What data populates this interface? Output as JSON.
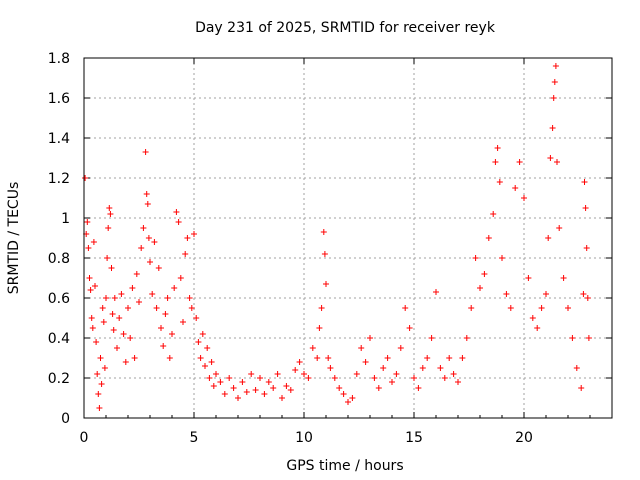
{
  "chart_data": {
    "type": "scatter",
    "title": "Day 231 of 2025, SRMTID for receiver reyk",
    "xlabel": "GPS time / hours",
    "ylabel": "SRMTID / TECUs",
    "xlim": [
      0,
      24
    ],
    "ylim": [
      0,
      1.8
    ],
    "xticks": [
      0,
      5,
      10,
      15,
      20
    ],
    "xtick_labels": [
      "0",
      "5",
      "10",
      "15",
      "20"
    ],
    "yticks": [
      0,
      0.2,
      0.4,
      0.6,
      0.8,
      1.0,
      1.2,
      1.4,
      1.6,
      1.8
    ],
    "ytick_labels": [
      "0",
      "0.2",
      "0.4",
      "0.6",
      "0.8",
      "1",
      "1.2",
      "1.4",
      "1.6",
      "1.8"
    ],
    "grid": true,
    "marker": "+",
    "series": [
      {
        "name": "SRMTID",
        "color": "#ff0000",
        "points": [
          [
            0.05,
            1.2
          ],
          [
            0.1,
            0.92
          ],
          [
            0.15,
            0.98
          ],
          [
            0.2,
            0.85
          ],
          [
            0.25,
            0.7
          ],
          [
            0.3,
            0.64
          ],
          [
            0.35,
            0.5
          ],
          [
            0.4,
            0.45
          ],
          [
            0.45,
            0.88
          ],
          [
            0.5,
            0.66
          ],
          [
            0.55,
            0.38
          ],
          [
            0.6,
            0.22
          ],
          [
            0.65,
            0.12
          ],
          [
            0.7,
            0.05
          ],
          [
            0.75,
            0.3
          ],
          [
            0.8,
            0.17
          ],
          [
            0.85,
            0.55
          ],
          [
            0.9,
            0.48
          ],
          [
            0.95,
            0.25
          ],
          [
            1.0,
            0.6
          ],
          [
            1.05,
            0.8
          ],
          [
            1.1,
            0.95
          ],
          [
            1.15,
            1.05
          ],
          [
            1.2,
            1.02
          ],
          [
            1.25,
            0.75
          ],
          [
            1.3,
            0.52
          ],
          [
            1.35,
            0.44
          ],
          [
            1.4,
            0.6
          ],
          [
            1.5,
            0.35
          ],
          [
            1.6,
            0.5
          ],
          [
            1.7,
            0.62
          ],
          [
            1.8,
            0.42
          ],
          [
            1.9,
            0.28
          ],
          [
            2.0,
            0.55
          ],
          [
            2.1,
            0.4
          ],
          [
            2.2,
            0.65
          ],
          [
            2.3,
            0.3
          ],
          [
            2.4,
            0.72
          ],
          [
            2.5,
            0.58
          ],
          [
            2.6,
            0.85
          ],
          [
            2.7,
            0.95
          ],
          [
            2.8,
            1.33
          ],
          [
            2.85,
            1.12
          ],
          [
            2.9,
            1.07
          ],
          [
            2.95,
            0.9
          ],
          [
            3.0,
            0.78
          ],
          [
            3.1,
            0.62
          ],
          [
            3.2,
            0.88
          ],
          [
            3.3,
            0.55
          ],
          [
            3.4,
            0.75
          ],
          [
            3.5,
            0.45
          ],
          [
            3.6,
            0.36
          ],
          [
            3.7,
            0.52
          ],
          [
            3.8,
            0.6
          ],
          [
            3.9,
            0.3
          ],
          [
            4.0,
            0.42
          ],
          [
            4.1,
            0.65
          ],
          [
            4.2,
            1.03
          ],
          [
            4.3,
            0.98
          ],
          [
            4.4,
            0.7
          ],
          [
            4.5,
            0.48
          ],
          [
            4.6,
            0.82
          ],
          [
            4.7,
            0.9
          ],
          [
            4.8,
            0.6
          ],
          [
            4.9,
            0.55
          ],
          [
            5.0,
            0.92
          ],
          [
            5.1,
            0.5
          ],
          [
            5.2,
            0.38
          ],
          [
            5.3,
            0.3
          ],
          [
            5.4,
            0.42
          ],
          [
            5.5,
            0.26
          ],
          [
            5.6,
            0.35
          ],
          [
            5.7,
            0.2
          ],
          [
            5.8,
            0.28
          ],
          [
            5.9,
            0.16
          ],
          [
            6.0,
            0.22
          ],
          [
            6.2,
            0.18
          ],
          [
            6.4,
            0.12
          ],
          [
            6.6,
            0.2
          ],
          [
            6.8,
            0.15
          ],
          [
            7.0,
            0.1
          ],
          [
            7.2,
            0.18
          ],
          [
            7.4,
            0.13
          ],
          [
            7.6,
            0.22
          ],
          [
            7.8,
            0.14
          ],
          [
            8.0,
            0.2
          ],
          [
            8.2,
            0.12
          ],
          [
            8.4,
            0.18
          ],
          [
            8.6,
            0.15
          ],
          [
            8.8,
            0.22
          ],
          [
            9.0,
            0.1
          ],
          [
            9.2,
            0.16
          ],
          [
            9.4,
            0.14
          ],
          [
            9.6,
            0.24
          ],
          [
            9.8,
            0.28
          ],
          [
            10.0,
            0.22
          ],
          [
            10.2,
            0.2
          ],
          [
            10.4,
            0.35
          ],
          [
            10.6,
            0.3
          ],
          [
            10.7,
            0.45
          ],
          [
            10.8,
            0.55
          ],
          [
            10.9,
            0.93
          ],
          [
            10.95,
            0.82
          ],
          [
            11.0,
            0.67
          ],
          [
            11.1,
            0.3
          ],
          [
            11.2,
            0.25
          ],
          [
            11.4,
            0.2
          ],
          [
            11.6,
            0.15
          ],
          [
            11.8,
            0.12
          ],
          [
            12.0,
            0.08
          ],
          [
            12.2,
            0.1
          ],
          [
            12.4,
            0.22
          ],
          [
            12.6,
            0.35
          ],
          [
            12.8,
            0.28
          ],
          [
            13.0,
            0.4
          ],
          [
            13.2,
            0.2
          ],
          [
            13.4,
            0.15
          ],
          [
            13.6,
            0.25
          ],
          [
            13.8,
            0.3
          ],
          [
            14.0,
            0.18
          ],
          [
            14.2,
            0.22
          ],
          [
            14.4,
            0.35
          ],
          [
            14.6,
            0.55
          ],
          [
            14.8,
            0.45
          ],
          [
            15.0,
            0.2
          ],
          [
            15.2,
            0.15
          ],
          [
            15.4,
            0.25
          ],
          [
            15.6,
            0.3
          ],
          [
            15.8,
            0.4
          ],
          [
            16.0,
            0.63
          ],
          [
            16.2,
            0.25
          ],
          [
            16.4,
            0.2
          ],
          [
            16.6,
            0.3
          ],
          [
            16.8,
            0.22
          ],
          [
            17.0,
            0.18
          ],
          [
            17.2,
            0.3
          ],
          [
            17.4,
            0.4
          ],
          [
            17.6,
            0.55
          ],
          [
            17.8,
            0.8
          ],
          [
            18.0,
            0.65
          ],
          [
            18.2,
            0.72
          ],
          [
            18.4,
            0.9
          ],
          [
            18.6,
            1.02
          ],
          [
            18.7,
            1.28
          ],
          [
            18.8,
            1.35
          ],
          [
            18.9,
            1.18
          ],
          [
            19.0,
            0.8
          ],
          [
            19.2,
            0.62
          ],
          [
            19.4,
            0.55
          ],
          [
            19.6,
            1.15
          ],
          [
            19.8,
            1.28
          ],
          [
            20.0,
            1.1
          ],
          [
            20.2,
            0.7
          ],
          [
            20.4,
            0.5
          ],
          [
            20.6,
            0.45
          ],
          [
            20.8,
            0.55
          ],
          [
            21.0,
            0.62
          ],
          [
            21.1,
            0.9
          ],
          [
            21.2,
            1.3
          ],
          [
            21.3,
            1.45
          ],
          [
            21.35,
            1.6
          ],
          [
            21.4,
            1.68
          ],
          [
            21.45,
            1.76
          ],
          [
            21.5,
            1.28
          ],
          [
            21.6,
            0.95
          ],
          [
            21.8,
            0.7
          ],
          [
            22.0,
            0.55
          ],
          [
            22.2,
            0.4
          ],
          [
            22.4,
            0.25
          ],
          [
            22.6,
            0.15
          ],
          [
            22.7,
            0.62
          ],
          [
            22.75,
            1.18
          ],
          [
            22.8,
            1.05
          ],
          [
            22.85,
            0.85
          ],
          [
            22.9,
            0.6
          ],
          [
            22.95,
            0.4
          ]
        ]
      }
    ]
  }
}
